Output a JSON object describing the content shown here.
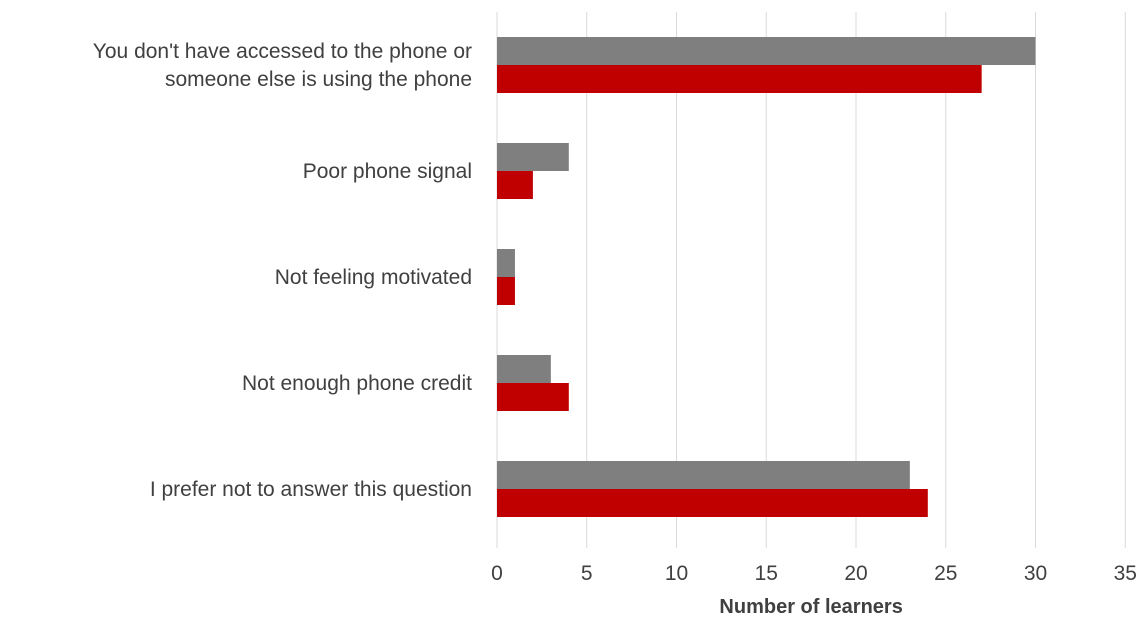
{
  "chart_data": {
    "type": "bar",
    "orientation": "horizontal",
    "categories": [
      [
        "You don't have accessed to the phone or",
        "someone else is using the phone"
      ],
      [
        "Poor phone signal"
      ],
      [
        "Not feeling motivated"
      ],
      [
        "Not enough phone credit"
      ],
      [
        "I prefer not to answer this question"
      ]
    ],
    "series": [
      {
        "values": [
          30,
          4,
          1,
          3,
          23
        ],
        "color": "#7f7f7f"
      },
      {
        "values": [
          27,
          2,
          1,
          4,
          24
        ],
        "color": "#c00000"
      }
    ],
    "xlabel": "Number of learners",
    "ylabel": "",
    "xlim": [
      0,
      35
    ],
    "xticks": [
      0,
      5,
      10,
      15,
      20,
      25,
      30,
      35
    ],
    "grid": "vertical",
    "legend": "none"
  }
}
